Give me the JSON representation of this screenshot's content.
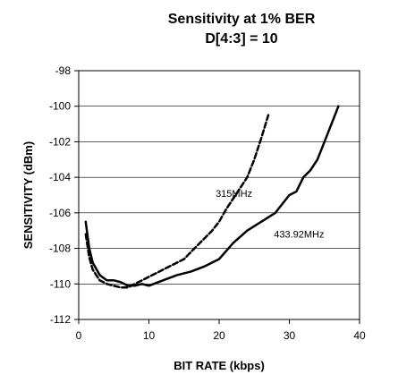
{
  "chart_data": {
    "type": "line",
    "title": "Sensitivity at 1% BER",
    "subtitle": "D[4:3] = 10",
    "xlabel": "BIT RATE (kbps)",
    "ylabel": "SENSITIVITY (dBm)",
    "xlim": [
      0,
      40
    ],
    "ylim": [
      -112,
      -98
    ],
    "xticks": [
      0,
      10,
      20,
      30,
      40
    ],
    "yticks": [
      -112,
      -110,
      -108,
      -106,
      -104,
      -102,
      -100,
      -98
    ],
    "xtick_labels": [
      "0",
      "10",
      "20",
      "30",
      "40"
    ],
    "ytick_labels": [
      "-112",
      "-110",
      "-108",
      "-106",
      "-104",
      "-102",
      "-100",
      "-98"
    ],
    "grid": "horizontal",
    "legend": "none",
    "series": [
      {
        "label": "315MHz",
        "style": "dashed",
        "color": "#000000",
        "x": [
          1,
          1.5,
          2,
          3,
          4,
          5,
          6,
          7,
          8,
          9,
          10,
          11,
          12,
          13,
          14,
          15,
          16,
          17,
          18,
          19,
          20,
          21,
          22,
          23,
          24,
          25,
          26,
          27
        ],
        "y": [
          -107.2,
          -108.5,
          -109.2,
          -109.8,
          -110.0,
          -110.1,
          -110.2,
          -110.2,
          -110.0,
          -109.8,
          -109.6,
          -109.4,
          -109.2,
          -109.0,
          -108.8,
          -108.6,
          -108.2,
          -107.8,
          -107.4,
          -107.0,
          -106.5,
          -105.8,
          -105.2,
          -104.6,
          -104.0,
          -103.0,
          -101.8,
          -100.5
        ]
      },
      {
        "label": "433.92MHz",
        "style": "solid",
        "color": "#000000",
        "x": [
          1,
          1.5,
          2,
          3,
          4,
          5,
          6,
          7,
          8,
          9,
          10,
          12,
          14,
          16,
          18,
          20,
          22,
          24,
          26,
          28,
          30,
          31,
          32,
          33,
          34,
          35,
          36,
          37
        ],
        "y": [
          -106.5,
          -108.0,
          -108.8,
          -109.5,
          -109.8,
          -109.8,
          -109.9,
          -110.1,
          -110.1,
          -110.0,
          -110.1,
          -109.8,
          -109.5,
          -109.3,
          -109.0,
          -108.6,
          -107.7,
          -107.0,
          -106.5,
          -106.0,
          -105.0,
          -104.8,
          -104.0,
          -103.6,
          -103.0,
          -102.0,
          -101.0,
          -100.0
        ]
      }
    ],
    "annotations": [
      {
        "text": "315MHz",
        "x": 19.5,
        "y": -105.1
      },
      {
        "text": "433.92MHz",
        "x": 27.8,
        "y": -107.4
      }
    ]
  }
}
